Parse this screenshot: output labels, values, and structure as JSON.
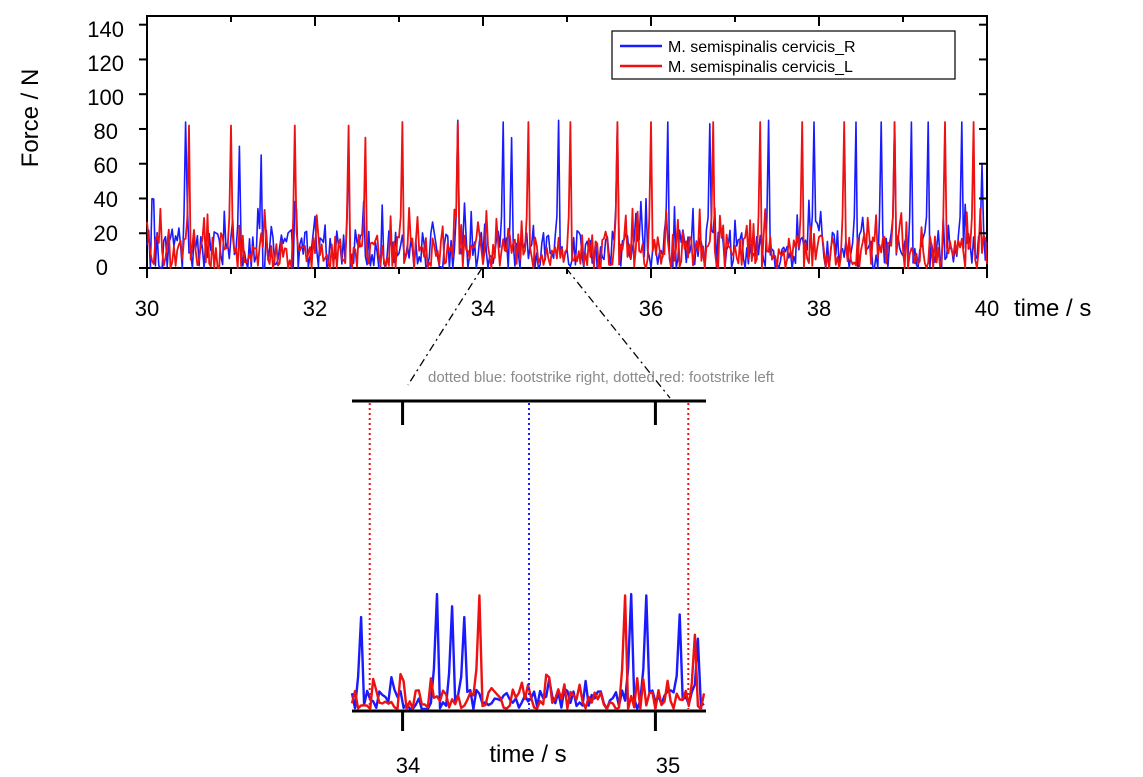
{
  "chart_data": [
    {
      "type": "line",
      "ylabel": "Force / N",
      "xlabel": "time / s",
      "xlim": [
        30,
        40
      ],
      "ylim": [
        0,
        145
      ],
      "x_ticks": [
        "30",
        "32",
        "34",
        "36",
        "38",
        "40"
      ],
      "y_ticks": [
        "0",
        "20",
        "40",
        "60",
        "80",
        "100",
        "120",
        "140"
      ],
      "legend_position": "top-right",
      "series": [
        {
          "name": "M. semispinalis cervicis_R",
          "color": "#1a1aff",
          "peaks": [
            [
              30.45,
              84
            ],
            [
              31.1,
              70
            ],
            [
              31.35,
              65
            ],
            [
              32.4,
              72
            ],
            [
              33.7,
              85
            ],
            [
              34.25,
              84
            ],
            [
              34.35,
              75
            ],
            [
              34.9,
              85
            ],
            [
              35.6,
              82
            ],
            [
              36.2,
              84
            ],
            [
              36.7,
              83
            ],
            [
              37.4,
              85
            ],
            [
              37.95,
              84
            ],
            [
              38.45,
              84
            ],
            [
              38.75,
              84
            ],
            [
              38.9,
              84
            ],
            [
              39.1,
              84
            ],
            [
              39.3,
              84
            ],
            [
              39.7,
              84
            ],
            [
              39.95,
              60
            ]
          ],
          "baseline_range": [
            0,
            40
          ]
        },
        {
          "name": "M. semispinalis cervicis_L",
          "color": "#ee1111",
          "peaks": [
            [
              30.5,
              82
            ],
            [
              31.0,
              82
            ],
            [
              31.75,
              82
            ],
            [
              32.4,
              82
            ],
            [
              32.6,
              75
            ],
            [
              33.05,
              84
            ],
            [
              33.7,
              84
            ],
            [
              34.55,
              84
            ],
            [
              35.05,
              84
            ],
            [
              35.6,
              84
            ],
            [
              36.0,
              84
            ],
            [
              36.75,
              84
            ],
            [
              37.3,
              84
            ],
            [
              37.8,
              84
            ],
            [
              38.3,
              84
            ],
            [
              38.9,
              84
            ],
            [
              39.5,
              84
            ],
            [
              39.85,
              84
            ]
          ],
          "baseline_range": [
            0,
            35
          ]
        }
      ]
    },
    {
      "type": "line",
      "title": "dotted blue: footstrike right, dotted red: footstrike left",
      "xlabel": "time / s",
      "xlim": [
        33.8,
        35.2
      ],
      "x_ticks": [
        "34",
        "35"
      ],
      "footstrikes": [
        {
          "side": "left",
          "color": "#ee1111",
          "t": 33.87
        },
        {
          "side": "right",
          "color": "#1a1aff",
          "t": 34.5
        },
        {
          "side": "left",
          "color": "#ee1111",
          "t": 35.13
        }
      ],
      "series": [
        {
          "name": "M. semispinalis cervicis_R",
          "color": "#1a1aff",
          "peaks": [
            [
              33.84,
              68
            ],
            [
              34.14,
              85
            ],
            [
              34.2,
              76
            ],
            [
              34.24,
              68
            ],
            [
              34.9,
              85
            ],
            [
              34.96,
              84
            ],
            [
              35.1,
              70
            ],
            [
              35.17,
              52
            ]
          ]
        },
        {
          "name": "M. semispinalis cervicis_L",
          "color": "#ee1111",
          "peaks": [
            [
              34.31,
              84
            ],
            [
              34.88,
              84
            ],
            [
              35.16,
              55
            ]
          ]
        }
      ]
    }
  ]
}
